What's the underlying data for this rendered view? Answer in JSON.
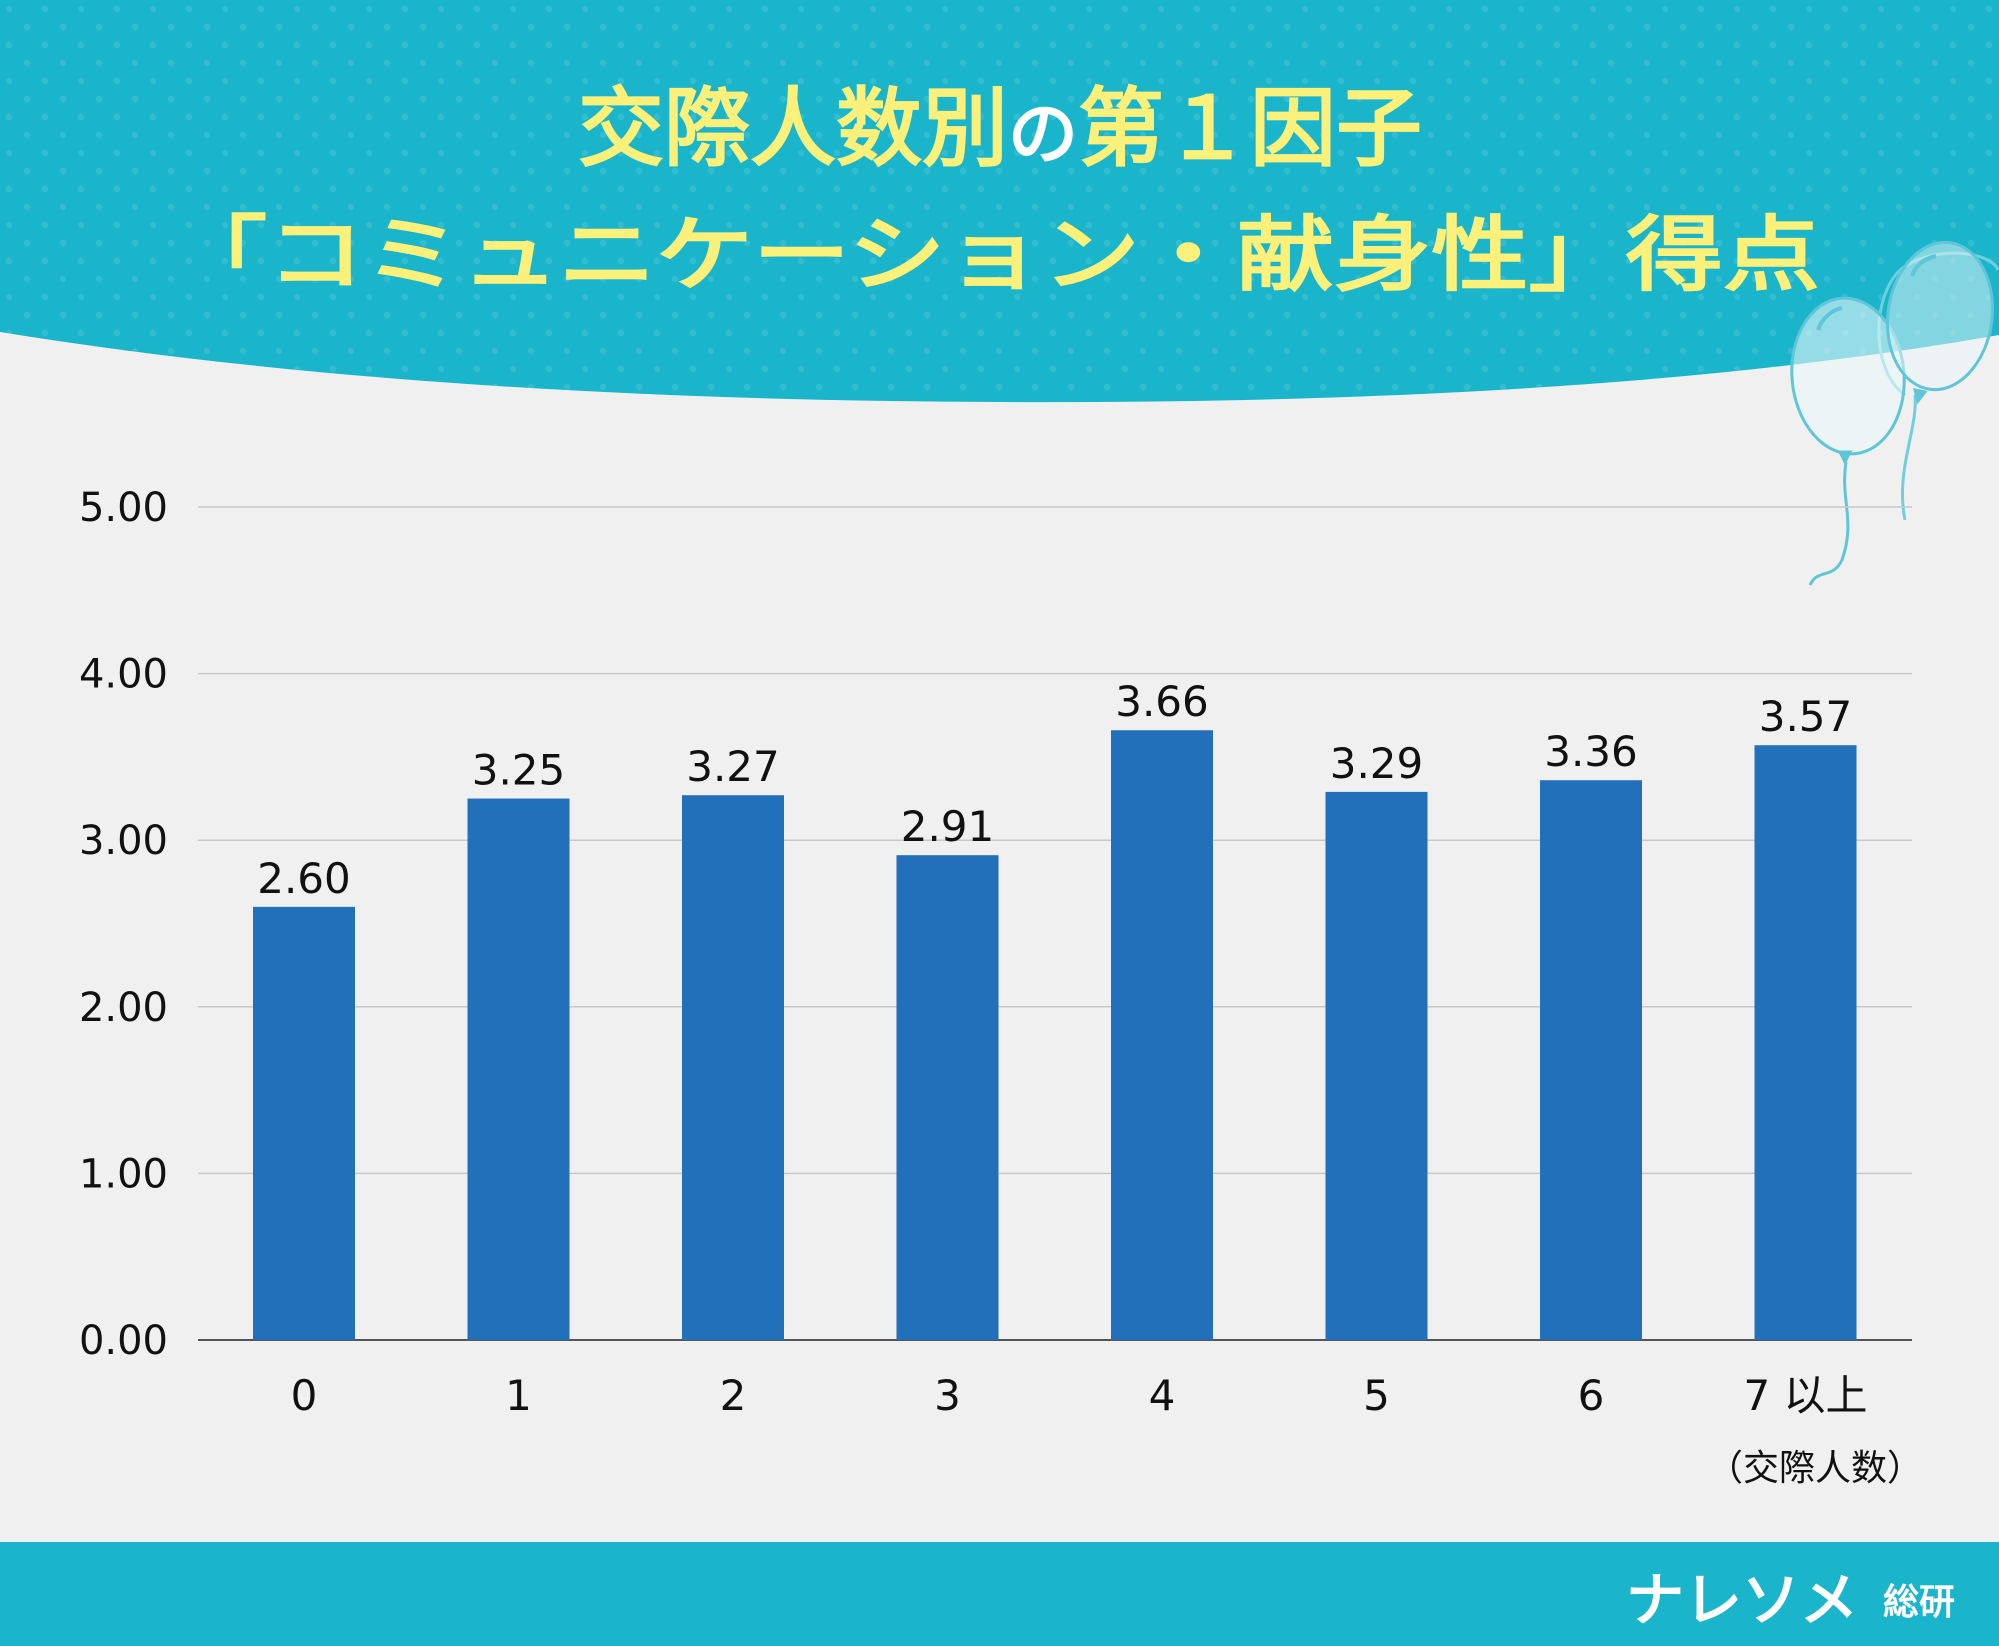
{
  "title": {
    "line1_part1": "交際人数別",
    "line1_part2": "の",
    "line1_part3": "第１因子",
    "line2": "「コミュニケーション・献身性」得点"
  },
  "brand": {
    "name": "ナレソメ",
    "suffix": "総研"
  },
  "colors": {
    "header_bg": "#1bb5cb",
    "title_yellow": "#fbf07a",
    "title_white": "#ffffff",
    "bar": "#2270b9",
    "background": "#f0f0f0",
    "gridline": "#c8c8c8",
    "axis": "#555555",
    "text": "#111111"
  },
  "icons": {
    "decoration": "balloons-icon"
  },
  "chart_data": {
    "type": "bar",
    "categories": [
      "0",
      "1",
      "2",
      "3",
      "4",
      "5",
      "6",
      "7 以上"
    ],
    "values": [
      2.6,
      3.25,
      3.27,
      2.91,
      3.66,
      3.29,
      3.36,
      3.57
    ],
    "data_labels": [
      "2.60",
      "3.25",
      "3.27",
      "2.91",
      "3.66",
      "3.29",
      "3.36",
      "3.57"
    ],
    "ylim": [
      0,
      5
    ],
    "yticks": [
      "0.00",
      "1.00",
      "2.00",
      "3.00",
      "4.00",
      "5.00"
    ],
    "ytick_values": [
      0,
      1,
      2,
      3,
      4,
      5
    ],
    "xlabel": "（交際人数）",
    "ylabel": "",
    "grid": true,
    "legend": "none"
  }
}
